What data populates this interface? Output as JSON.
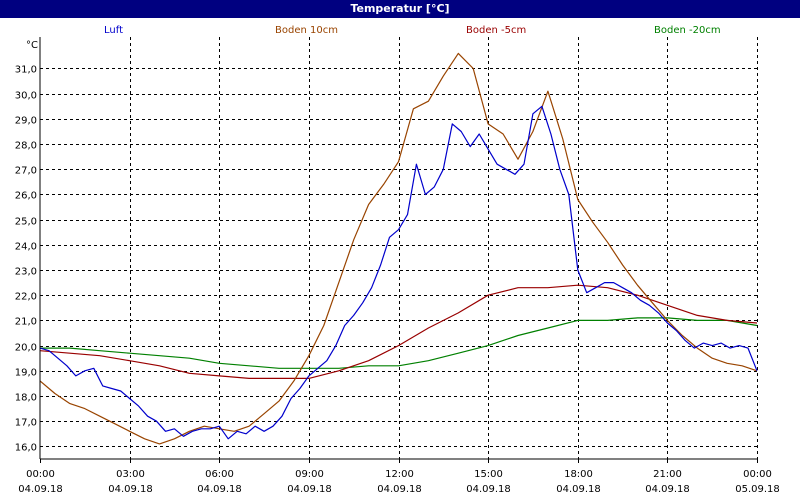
{
  "window": {
    "title": "Temperatur [°C]"
  },
  "chart_data": {
    "type": "line",
    "title": "Temperatur [°C]",
    "unit_label": "°C",
    "xlabel": "",
    "ylabel": "",
    "ylim": [
      15.5,
      32.25
    ],
    "xlim": [
      0,
      24
    ],
    "grid": true,
    "legend_position": "top",
    "y_ticks": [
      "16,0",
      "17,0",
      "18,0",
      "19,0",
      "20,0",
      "21,0",
      "22,0",
      "23,0",
      "24,0",
      "25,0",
      "26,0",
      "27,0",
      "28,0",
      "29,0",
      "30,0",
      "31,0"
    ],
    "y_tick_values": [
      16,
      17,
      18,
      19,
      20,
      21,
      22,
      23,
      24,
      25,
      26,
      27,
      28,
      29,
      30,
      31
    ],
    "x_ticks": [
      {
        "x": 0,
        "time": "00:00",
        "date": "04.09.18"
      },
      {
        "x": 3,
        "time": "03:00",
        "date": "04.09.18"
      },
      {
        "x": 6,
        "time": "06:00",
        "date": "04.09.18"
      },
      {
        "x": 9,
        "time": "09:00",
        "date": "04.09.18"
      },
      {
        "x": 12,
        "time": "12:00",
        "date": "04.09.18"
      },
      {
        "x": 15,
        "time": "15:00",
        "date": "04.09.18"
      },
      {
        "x": 18,
        "time": "18:00",
        "date": "04.09.18"
      },
      {
        "x": 21,
        "time": "21:00",
        "date": "04.09.18"
      },
      {
        "x": 24,
        "time": "00:00",
        "date": "05.09.18"
      }
    ],
    "series": [
      {
        "name": "Luft",
        "color": "#0000cc",
        "x": [
          0,
          0.3,
          0.6,
          0.9,
          1.2,
          1.5,
          1.8,
          2.1,
          2.4,
          2.7,
          3,
          3.3,
          3.6,
          3.9,
          4.2,
          4.5,
          4.8,
          5.1,
          5.4,
          5.7,
          6,
          6.3,
          6.6,
          6.9,
          7.2,
          7.5,
          7.8,
          8.1,
          8.4,
          8.7,
          9,
          9.3,
          9.6,
          9.9,
          10.2,
          10.5,
          10.8,
          11.1,
          11.4,
          11.7,
          12,
          12.3,
          12.6,
          12.9,
          13.2,
          13.5,
          13.8,
          14.1,
          14.4,
          14.7,
          15,
          15.3,
          15.6,
          15.9,
          16.2,
          16.5,
          16.8,
          17.1,
          17.4,
          17.7,
          18,
          18.3,
          18.6,
          18.9,
          19.2,
          19.5,
          19.8,
          20.1,
          20.4,
          20.7,
          21,
          21.3,
          21.6,
          21.9,
          22.2,
          22.5,
          22.8,
          23.1,
          23.4,
          23.7,
          24
        ],
        "y": [
          19.9,
          19.8,
          19.5,
          19.2,
          18.8,
          19.0,
          19.1,
          18.4,
          18.3,
          18.2,
          17.9,
          17.6,
          17.2,
          17.0,
          16.6,
          16.7,
          16.4,
          16.6,
          16.7,
          16.7,
          16.8,
          16.3,
          16.6,
          16.5,
          16.8,
          16.6,
          16.8,
          17.2,
          17.9,
          18.3,
          18.8,
          19.1,
          19.4,
          20.0,
          20.8,
          21.2,
          21.7,
          22.3,
          23.2,
          24.3,
          24.6,
          25.2,
          27.2,
          26.0,
          26.3,
          27.0,
          28.8,
          28.5,
          27.9,
          28.4,
          27.8,
          27.2,
          27.0,
          26.8,
          27.2,
          29.2,
          29.5,
          28.4,
          27.0,
          26.0,
          23.0,
          22.1,
          22.3,
          22.5,
          22.5,
          22.3,
          22.1,
          21.8,
          21.6,
          21.3,
          20.9,
          20.6,
          20.2,
          19.9,
          20.1,
          20.0,
          20.1,
          19.9,
          20.0,
          19.9,
          19.0
        ]
      },
      {
        "name": "Boden 10cm",
        "color": "#994400",
        "x": [
          0,
          0.5,
          1,
          1.5,
          2,
          2.5,
          3,
          3.5,
          4,
          4.5,
          5,
          5.5,
          6,
          6.5,
          7,
          7.5,
          8,
          8.5,
          9,
          9.5,
          10,
          10.5,
          11,
          11.5,
          12,
          12.5,
          13,
          13.5,
          14,
          14.5,
          15,
          15.5,
          16,
          16.5,
          17,
          17.5,
          18,
          18.5,
          19,
          19.5,
          20,
          20.5,
          21,
          21.5,
          22,
          22.5,
          23,
          23.5,
          24
        ],
        "y": [
          18.6,
          18.1,
          17.7,
          17.5,
          17.2,
          16.9,
          16.6,
          16.3,
          16.1,
          16.3,
          16.6,
          16.8,
          16.7,
          16.6,
          16.8,
          17.3,
          17.8,
          18.6,
          19.6,
          20.8,
          22.5,
          24.2,
          25.6,
          26.4,
          27.3,
          29.4,
          29.7,
          30.7,
          31.6,
          31.0,
          28.8,
          28.4,
          27.4,
          28.5,
          30.1,
          28.2,
          25.8,
          24.9,
          24.1,
          23.2,
          22.4,
          21.7,
          21.0,
          20.4,
          19.9,
          19.5,
          19.3,
          19.2,
          19.0
        ]
      },
      {
        "name": "Boden -5cm",
        "color": "#990000",
        "x": [
          0,
          1,
          2,
          3,
          4,
          5,
          6,
          7,
          8,
          9,
          10,
          11,
          12,
          13,
          14,
          15,
          16,
          17,
          18,
          19,
          20,
          21,
          22,
          23,
          24
        ],
        "y": [
          19.8,
          19.7,
          19.6,
          19.4,
          19.2,
          18.9,
          18.8,
          18.7,
          18.7,
          18.7,
          19.0,
          19.4,
          20.0,
          20.7,
          21.3,
          22.0,
          22.3,
          22.3,
          22.4,
          22.3,
          22.0,
          21.6,
          21.2,
          21.0,
          20.9
        ]
      },
      {
        "name": "Boden -20cm",
        "color": "#008000",
        "x": [
          0,
          1,
          2,
          3,
          4,
          5,
          6,
          7,
          8,
          9,
          10,
          11,
          12,
          13,
          14,
          15,
          16,
          17,
          18,
          19,
          20,
          21,
          22,
          23,
          24
        ],
        "y": [
          19.9,
          19.9,
          19.8,
          19.7,
          19.6,
          19.5,
          19.3,
          19.2,
          19.1,
          19.1,
          19.1,
          19.2,
          19.2,
          19.4,
          19.7,
          20.0,
          20.4,
          20.7,
          21.0,
          21.0,
          21.1,
          21.1,
          21.0,
          21.0,
          20.8
        ]
      }
    ]
  }
}
